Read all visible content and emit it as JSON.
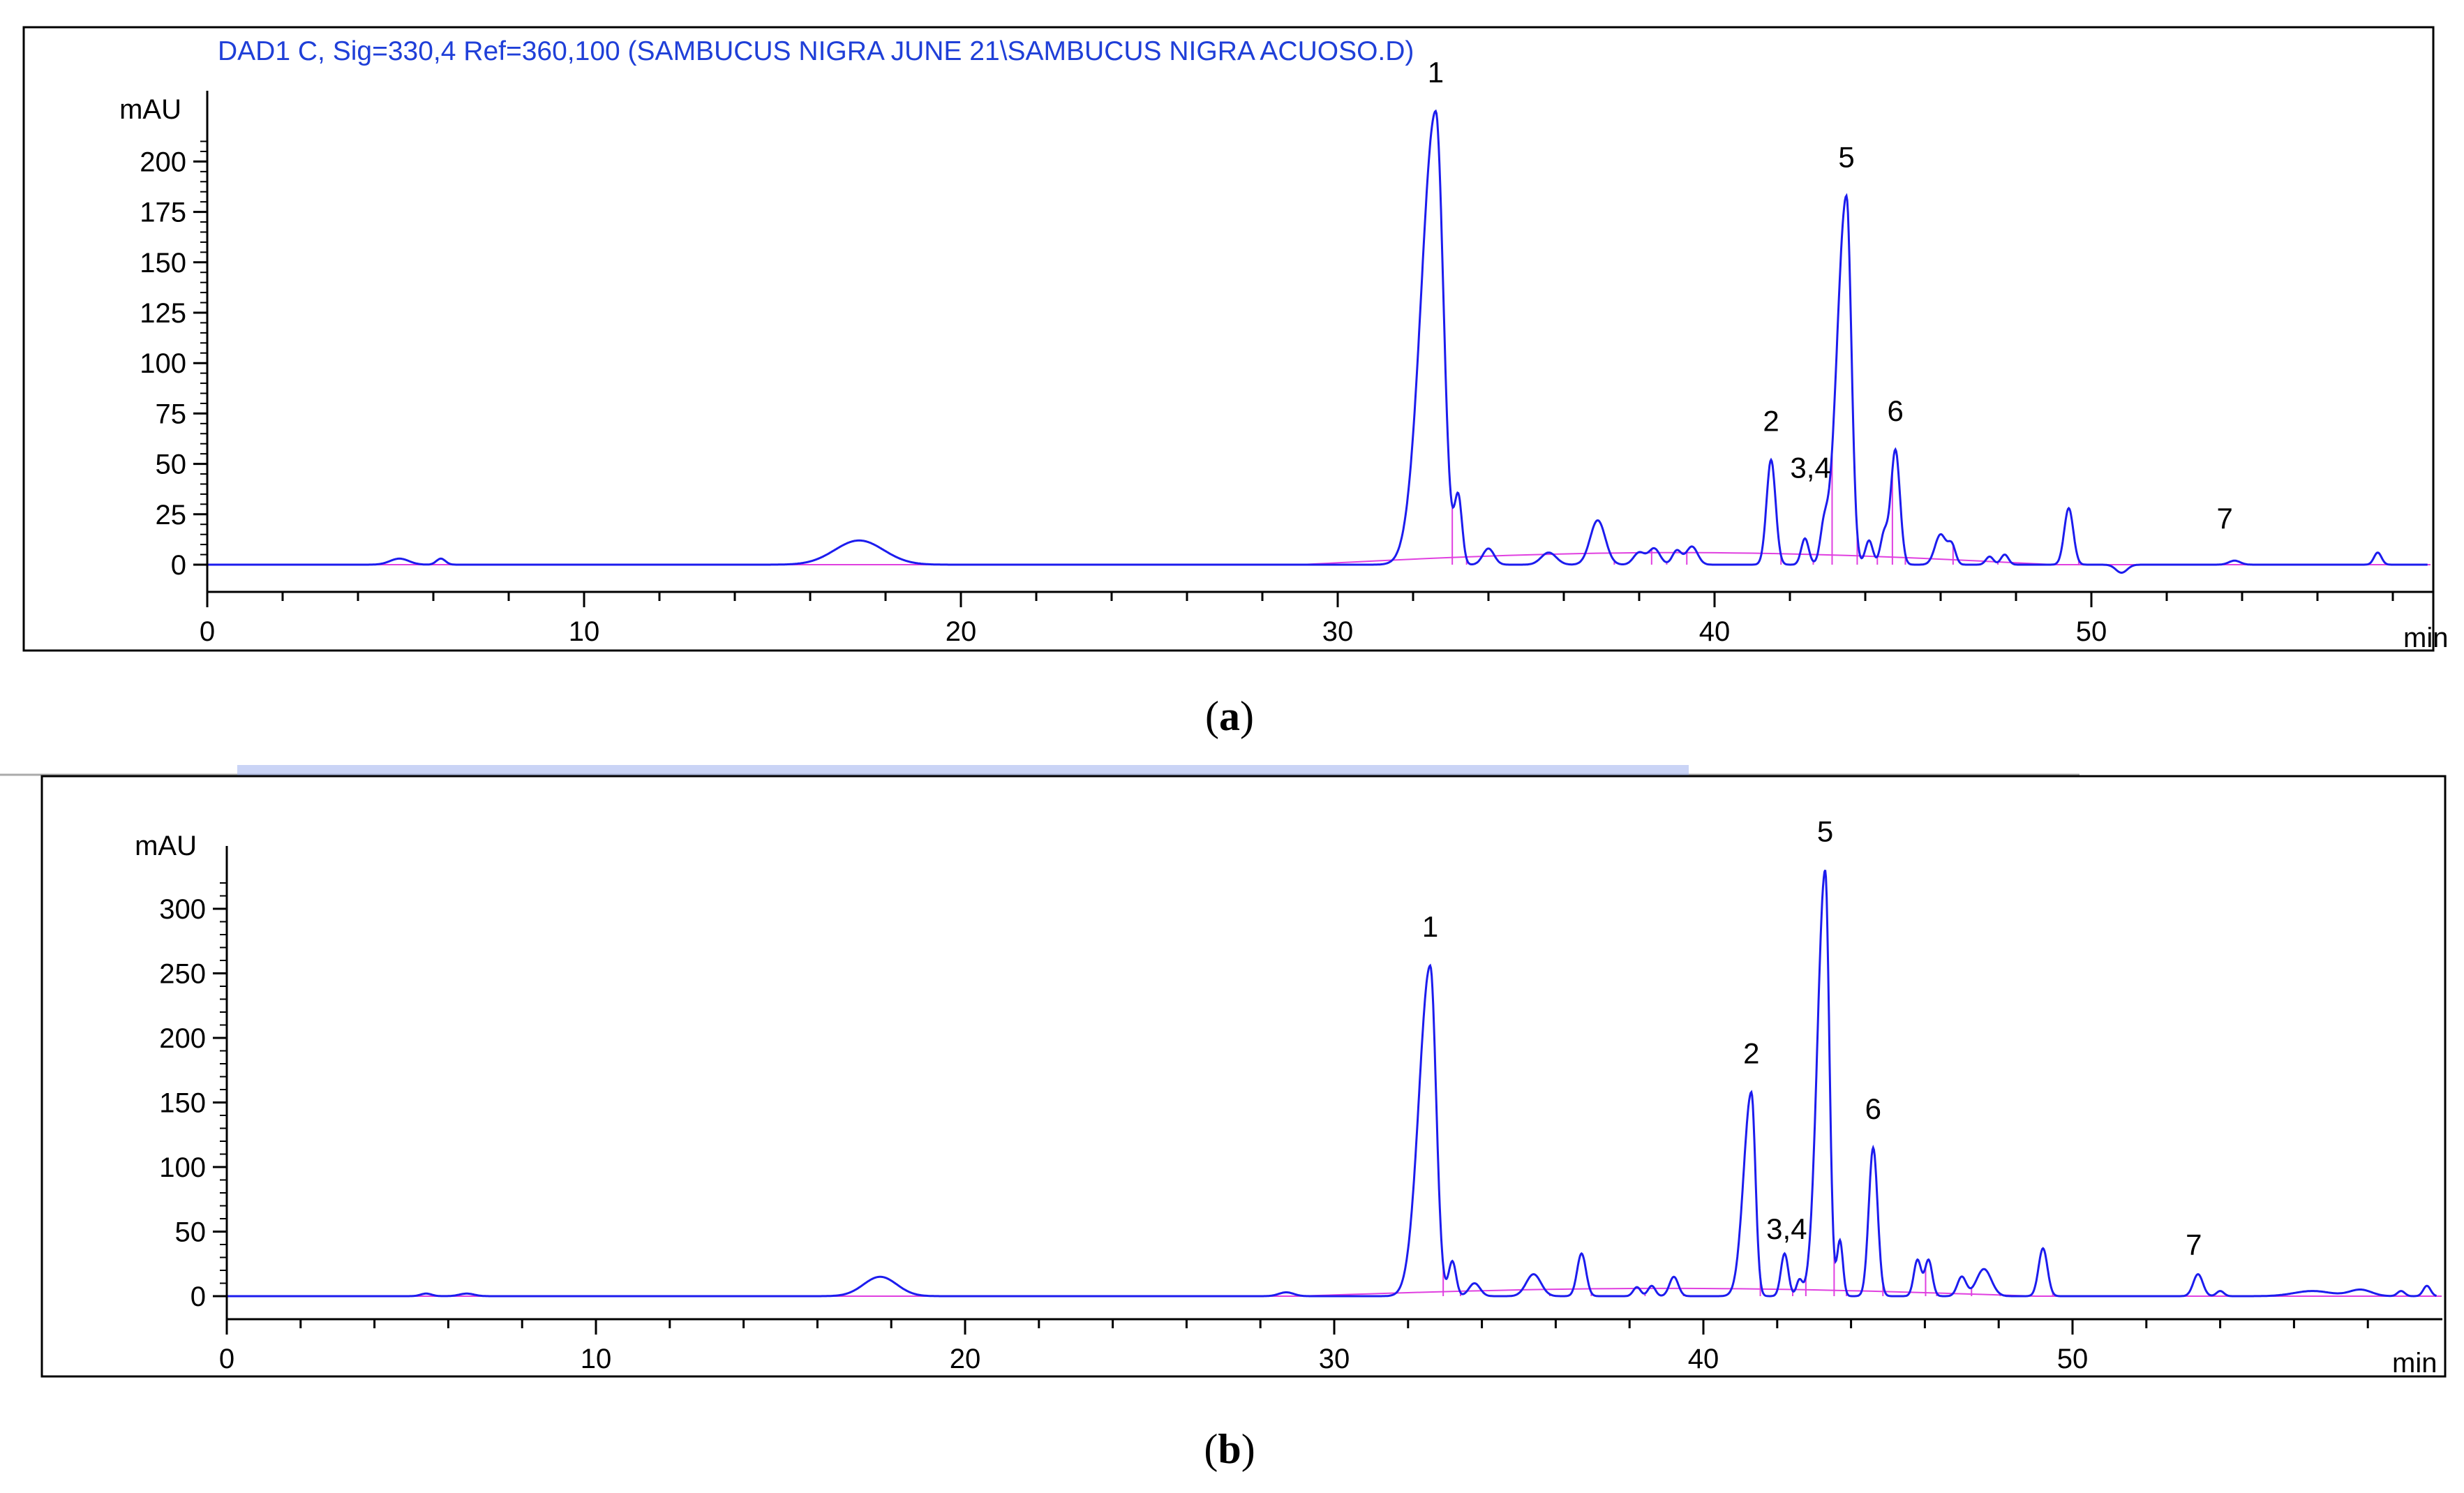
{
  "figure": {
    "panels": [
      {
        "caption_letter": "a",
        "header": "DAD1 C, Sig=330,4 Ref=360,100 (SAMBUCUS NIGRA JUNE 21\\SAMBUCUS NIGRA ACUOSO.D)"
      },
      {
        "caption_letter": "b",
        "header": ""
      }
    ]
  },
  "colors": {
    "signal": "#1c1cee",
    "baseline": "#e040e0",
    "header_text": "#1f3fd8",
    "axis": "#000000"
  },
  "chart_data": [
    {
      "type": "line",
      "panel": "a",
      "title": "DAD1 C, Sig=330,4 Ref=360,100 (SAMBUCUS NIGRA JUNE 21\\SAMBUCUS NIGRA ACUOSO.D)",
      "xlabel": "min",
      "ylabel": "mAU",
      "xlim": [
        0,
        59
      ],
      "ylim": [
        -14,
        232
      ],
      "x_ticks": [
        0,
        10,
        20,
        30,
        40,
        50
      ],
      "y_ticks": [
        0,
        25,
        50,
        75,
        100,
        125,
        150,
        175,
        200
      ],
      "peaks": [
        {
          "label": "",
          "x": 5.1,
          "y": 3,
          "w": 0.25
        },
        {
          "label": "",
          "x": 6.2,
          "y": 3,
          "w": 0.12
        },
        {
          "label": "",
          "x": 17.3,
          "y": 12,
          "w": 0.65
        },
        {
          "label": "1",
          "x": 32.6,
          "y": 225,
          "w": 0.2
        },
        {
          "label": "",
          "x": 33.2,
          "y": 33,
          "w": 0.1
        },
        {
          "label": "",
          "x": 34.0,
          "y": 8,
          "w": 0.15
        },
        {
          "label": "",
          "x": 35.6,
          "y": 6,
          "w": 0.2
        },
        {
          "label": "",
          "x": 36.9,
          "y": 22,
          "w": 0.2
        },
        {
          "label": "",
          "x": 38.0,
          "y": 6,
          "w": 0.15
        },
        {
          "label": "",
          "x": 38.4,
          "y": 8,
          "w": 0.15
        },
        {
          "label": "",
          "x": 39.0,
          "y": 7,
          "w": 0.12
        },
        {
          "label": "",
          "x": 39.4,
          "y": 9,
          "w": 0.15
        },
        {
          "label": "2",
          "x": 41.5,
          "y": 52,
          "w": 0.12
        },
        {
          "label": "3,4",
          "x": 42.4,
          "y": 13,
          "w": 0.1
        },
        {
          "label": "",
          "x": 42.9,
          "y": 15,
          "w": 0.1
        },
        {
          "label": "5",
          "x": 43.5,
          "y": 183,
          "w": 0.13
        },
        {
          "label": "",
          "x": 44.1,
          "y": 12,
          "w": 0.1
        },
        {
          "label": "",
          "x": 44.5,
          "y": 15,
          "w": 0.1
        },
        {
          "label": "6",
          "x": 44.8,
          "y": 57,
          "w": 0.12
        },
        {
          "label": "",
          "x": 46.0,
          "y": 15,
          "w": 0.15
        },
        {
          "label": "",
          "x": 46.3,
          "y": 9,
          "w": 0.1
        },
        {
          "label": "",
          "x": 47.3,
          "y": 4,
          "w": 0.1
        },
        {
          "label": "",
          "x": 47.7,
          "y": 5,
          "w": 0.1
        },
        {
          "label": "",
          "x": 49.4,
          "y": 28,
          "w": 0.12
        },
        {
          "label": "",
          "x": 50.8,
          "y": -4,
          "w": 0.15
        },
        {
          "label": "7",
          "x": 53.8,
          "y": 2,
          "w": 0.15
        },
        {
          "label": "",
          "x": 57.6,
          "y": 6,
          "w": 0.1
        }
      ]
    },
    {
      "type": "line",
      "panel": "b",
      "title": "",
      "xlabel": "min",
      "ylabel": "mAU",
      "xlim": [
        0,
        60
      ],
      "ylim": [
        -22,
        345
      ],
      "x_ticks": [
        0,
        10,
        20,
        30,
        40,
        50
      ],
      "y_ticks": [
        0,
        50,
        100,
        150,
        200,
        250,
        300
      ],
      "peaks": [
        {
          "label": "",
          "x": 5.4,
          "y": 2,
          "w": 0.15
        },
        {
          "label": "",
          "x": 6.5,
          "y": 2,
          "w": 0.2
        },
        {
          "label": "",
          "x": 17.7,
          "y": 15,
          "w": 0.45
        },
        {
          "label": "",
          "x": 28.7,
          "y": 3,
          "w": 0.2
        },
        {
          "label": "1",
          "x": 32.6,
          "y": 256,
          "w": 0.16
        },
        {
          "label": "",
          "x": 33.2,
          "y": 27,
          "w": 0.1
        },
        {
          "label": "",
          "x": 33.8,
          "y": 10,
          "w": 0.15
        },
        {
          "label": "",
          "x": 35.4,
          "y": 17,
          "w": 0.2
        },
        {
          "label": "",
          "x": 36.7,
          "y": 33,
          "w": 0.12
        },
        {
          "label": "",
          "x": 38.2,
          "y": 7,
          "w": 0.1
        },
        {
          "label": "",
          "x": 38.6,
          "y": 8,
          "w": 0.1
        },
        {
          "label": "",
          "x": 39.2,
          "y": 15,
          "w": 0.12
        },
        {
          "label": "2",
          "x": 41.3,
          "y": 158,
          "w": 0.11
        },
        {
          "label": "3,4",
          "x": 42.2,
          "y": 33,
          "w": 0.1
        },
        {
          "label": "",
          "x": 42.6,
          "y": 12,
          "w": 0.08
        },
        {
          "label": "5",
          "x": 43.3,
          "y": 330,
          "w": 0.11
        },
        {
          "label": "",
          "x": 43.7,
          "y": 43,
          "w": 0.08
        },
        {
          "label": "6",
          "x": 44.6,
          "y": 115,
          "w": 0.12
        },
        {
          "label": "",
          "x": 45.8,
          "y": 28,
          "w": 0.1
        },
        {
          "label": "",
          "x": 46.1,
          "y": 28,
          "w": 0.1
        },
        {
          "label": "",
          "x": 47.0,
          "y": 15,
          "w": 0.12
        },
        {
          "label": "",
          "x": 47.6,
          "y": 21,
          "w": 0.2
        },
        {
          "label": "",
          "x": 49.2,
          "y": 37,
          "w": 0.12
        },
        {
          "label": "7",
          "x": 53.4,
          "y": 17,
          "w": 0.13
        },
        {
          "label": "",
          "x": 54.0,
          "y": 4,
          "w": 0.1
        },
        {
          "label": "",
          "x": 56.5,
          "y": 4,
          "w": 0.5
        },
        {
          "label": "",
          "x": 57.8,
          "y": 5,
          "w": 0.3
        },
        {
          "label": "",
          "x": 58.9,
          "y": 4,
          "w": 0.1
        },
        {
          "label": "",
          "x": 59.6,
          "y": 8,
          "w": 0.1
        }
      ]
    }
  ]
}
